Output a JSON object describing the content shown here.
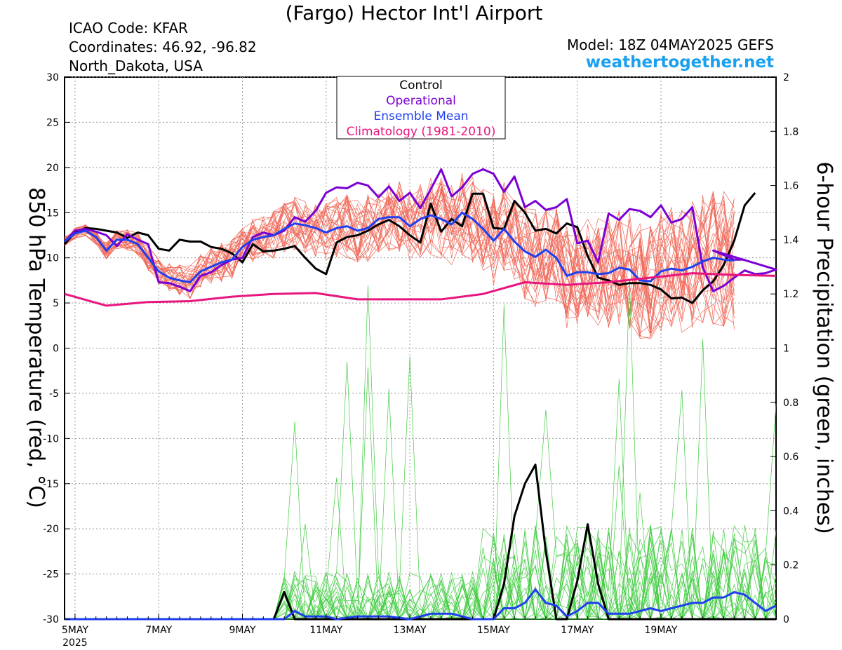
{
  "header": {
    "title": "(Fargo) Hector Int'l Airport",
    "icao": "ICAO Code: KFAR",
    "coordinates": "Coordinates: 46.92, -96.82",
    "region": "North_Dakota, USA",
    "model": "Model: 18Z 04MAY2025 GEFS",
    "site": "weathertogether.net"
  },
  "legend": {
    "items": [
      {
        "label": "Control",
        "color": "#000000"
      },
      {
        "label": "Operational",
        "color": "#7b00d4"
      },
      {
        "label": "Ensemble Mean",
        "color": "#1f3ff0"
      },
      {
        "label": "Climatology (1981-2010)",
        "color": "#e8157f"
      }
    ]
  },
  "colors": {
    "members_temp": "#f06a5a",
    "members_precip": "#44cc44",
    "control": "#000000",
    "operational": "#7b00d4",
    "mean": "#1f3ff0",
    "climatology": "#e8157f"
  },
  "chart_data": {
    "type": "line",
    "ylabel": "850 hPa Temperature (red, °C)",
    "y2label": "6-hour Precipitation (green, inches)",
    "x_unit": "days since 00Z 5MAY 2025",
    "xlim": [
      -0.25,
      16.75
    ],
    "ylim": [
      -30,
      30
    ],
    "y2lim": [
      0,
      2
    ],
    "x_ticks": [
      {
        "x": 0,
        "label": "5MAY",
        "sub": "2025"
      },
      {
        "x": 2,
        "label": "7MAY",
        "sub": ""
      },
      {
        "x": 4,
        "label": "9MAY",
        "sub": ""
      },
      {
        "x": 6,
        "label": "11MAY",
        "sub": ""
      },
      {
        "x": 8,
        "label": "13MAY",
        "sub": ""
      },
      {
        "x": 10,
        "label": "15MAY",
        "sub": ""
      },
      {
        "x": 12,
        "label": "17MAY",
        "sub": ""
      },
      {
        "x": 14,
        "label": "19MAY",
        "sub": ""
      }
    ],
    "y_ticks": [
      30,
      25,
      20,
      15,
      10,
      5,
      0,
      -5,
      -10,
      -15,
      -20,
      -25,
      -30
    ],
    "y2_ticks": [
      2,
      1.8,
      1.6,
      1.4,
      1.2,
      1,
      0.8,
      0.6,
      0.4,
      0.2,
      0
    ],
    "grid": true,
    "temperature_series": [
      {
        "name": "Control",
        "values": [
          [
            -0.25,
            11.5
          ],
          [
            0,
            12.8
          ],
          [
            0.25,
            13.3
          ],
          [
            0.5,
            13.2
          ],
          [
            0.75,
            13.0
          ],
          [
            1,
            12.8
          ],
          [
            1.25,
            12.2
          ],
          [
            1.5,
            12.8
          ],
          [
            1.75,
            12.5
          ],
          [
            2,
            11.0
          ],
          [
            2.25,
            10.8
          ],
          [
            2.5,
            12.0
          ],
          [
            2.75,
            11.8
          ],
          [
            3,
            11.8
          ],
          [
            3.25,
            11.2
          ],
          [
            3.5,
            11.0
          ],
          [
            3.75,
            10.5
          ],
          [
            4,
            9.5
          ],
          [
            4.25,
            11.5
          ],
          [
            4.5,
            10.7
          ],
          [
            4.75,
            10.8
          ],
          [
            5,
            11.0
          ],
          [
            5.25,
            11.3
          ],
          [
            5.5,
            10.0
          ],
          [
            5.75,
            8.8
          ],
          [
            6,
            8.2
          ],
          [
            6.25,
            11.7
          ],
          [
            6.5,
            12.3
          ],
          [
            6.75,
            12.5
          ],
          [
            7,
            13.0
          ],
          [
            7.25,
            13.7
          ],
          [
            7.5,
            14.2
          ],
          [
            7.75,
            13.5
          ],
          [
            8,
            12.5
          ],
          [
            8.25,
            11.7
          ],
          [
            8.5,
            16.0
          ],
          [
            8.75,
            12.9
          ],
          [
            9,
            14.3
          ],
          [
            9.25,
            13.5
          ],
          [
            9.5,
            17.1
          ],
          [
            9.75,
            17.1
          ],
          [
            10,
            13.3
          ],
          [
            10.25,
            13.2
          ],
          [
            10.5,
            16.3
          ],
          [
            10.75,
            15.0
          ],
          [
            11,
            13.0
          ],
          [
            11.25,
            13.2
          ],
          [
            11.5,
            12.7
          ],
          [
            11.75,
            13.8
          ],
          [
            12,
            13.4
          ],
          [
            12.25,
            10.2
          ],
          [
            12.5,
            7.8
          ],
          [
            12.75,
            7.5
          ],
          [
            13,
            7.0
          ],
          [
            13.25,
            7.2
          ],
          [
            13.5,
            7.2
          ],
          [
            13.75,
            7.0
          ],
          [
            14,
            6.5
          ],
          [
            14.25,
            5.5
          ],
          [
            14.5,
            5.6
          ],
          [
            14.75,
            5.0
          ],
          [
            15,
            6.4
          ],
          [
            15.25,
            7.4
          ],
          [
            15.5,
            9.2
          ],
          [
            15.75,
            11.9
          ],
          [
            16,
            15.8
          ],
          [
            16.25,
            17.2
          ]
        ]
      },
      {
        "name": "Operational",
        "values": [
          [
            -0.25,
            11.8
          ],
          [
            0,
            13.0
          ],
          [
            0.25,
            13.2
          ],
          [
            0.5,
            12.9
          ],
          [
            0.75,
            12.5
          ],
          [
            1,
            11.3
          ],
          [
            1.25,
            12.6
          ],
          [
            1.5,
            12.0
          ],
          [
            1.75,
            11.5
          ],
          [
            2,
            7.3
          ],
          [
            2.25,
            7.2
          ],
          [
            2.5,
            6.8
          ],
          [
            2.75,
            6.3
          ],
          [
            3,
            8.0
          ],
          [
            3.25,
            8.4
          ],
          [
            3.5,
            9.2
          ],
          [
            3.75,
            9.8
          ],
          [
            4,
            10.0
          ],
          [
            4.25,
            12.3
          ],
          [
            4.5,
            12.8
          ],
          [
            4.75,
            12.5
          ],
          [
            5,
            13.0
          ],
          [
            5.25,
            14.5
          ],
          [
            5.5,
            14.0
          ],
          [
            5.75,
            15.2
          ],
          [
            6,
            17.2
          ],
          [
            6.25,
            17.8
          ],
          [
            6.5,
            17.7
          ],
          [
            6.75,
            18.3
          ],
          [
            7,
            18.0
          ],
          [
            7.25,
            16.7
          ],
          [
            7.5,
            17.9
          ],
          [
            7.75,
            16.3
          ],
          [
            8,
            17.2
          ],
          [
            8.25,
            15.5
          ],
          [
            8.5,
            17.6
          ],
          [
            8.75,
            19.8
          ],
          [
            9,
            16.8
          ],
          [
            9.25,
            17.8
          ],
          [
            9.5,
            19.3
          ],
          [
            9.75,
            19.8
          ],
          [
            10,
            19.3
          ],
          [
            10.25,
            17.3
          ],
          [
            10.5,
            19.0
          ],
          [
            10.75,
            15.6
          ],
          [
            11,
            16.3
          ],
          [
            11.25,
            15.3
          ],
          [
            11.5,
            15.6
          ],
          [
            11.75,
            16.5
          ],
          [
            12,
            11.6
          ],
          [
            12.25,
            11.9
          ],
          [
            12.5,
            9.5
          ],
          [
            12.75,
            14.9
          ],
          [
            13,
            14.2
          ],
          [
            13.25,
            15.4
          ],
          [
            13.5,
            15.2
          ],
          [
            13.75,
            14.5
          ],
          [
            14,
            15.8
          ],
          [
            14.25,
            13.9
          ],
          [
            14.5,
            14.3
          ],
          [
            14.75,
            15.6
          ],
          [
            15,
            8.9
          ],
          [
            15.25,
            6.3
          ],
          [
            15.5,
            6.9
          ],
          [
            15.75,
            7.8
          ],
          [
            16,
            8.6
          ],
          [
            16.25,
            8.2
          ],
          [
            16.5,
            8.3
          ],
          [
            16.75,
            8.7
          ],
          [
            15.0,
            9.0
          ],
          [
            15.25,
            10.8
          ],
          [
            15.5,
            10.3
          ],
          [
            15.75,
            9.8
          ],
          [
            16,
            9.8
          ]
        ]
      },
      {
        "name": "Ensemble Mean",
        "values": [
          [
            -0.25,
            11.8
          ],
          [
            0,
            12.7
          ],
          [
            0.25,
            13.0
          ],
          [
            0.5,
            12.3
          ],
          [
            0.75,
            10.8
          ],
          [
            1,
            12.0
          ],
          [
            1.25,
            12.0
          ],
          [
            1.5,
            11.5
          ],
          [
            1.75,
            10.0
          ],
          [
            2,
            8.5
          ],
          [
            2.25,
            7.8
          ],
          [
            2.5,
            7.5
          ],
          [
            2.75,
            7.3
          ],
          [
            3,
            8.5
          ],
          [
            3.25,
            9.0
          ],
          [
            3.5,
            9.5
          ],
          [
            3.75,
            9.8
          ],
          [
            4,
            11.2
          ],
          [
            4.25,
            12.0
          ],
          [
            4.5,
            12.3
          ],
          [
            4.75,
            12.5
          ],
          [
            5,
            13.2
          ],
          [
            5.25,
            13.8
          ],
          [
            5.5,
            13.6
          ],
          [
            5.75,
            13.3
          ],
          [
            6,
            12.8
          ],
          [
            6.25,
            13.3
          ],
          [
            6.5,
            13.5
          ],
          [
            6.75,
            13.0
          ],
          [
            7,
            13.3
          ],
          [
            7.25,
            14.3
          ],
          [
            7.5,
            14.5
          ],
          [
            7.75,
            14.5
          ],
          [
            8,
            13.5
          ],
          [
            8.25,
            14.3
          ],
          [
            8.5,
            14.7
          ],
          [
            8.75,
            14.3
          ],
          [
            9,
            13.7
          ],
          [
            9.25,
            15.0
          ],
          [
            9.5,
            14.3
          ],
          [
            9.75,
            13.2
          ],
          [
            10,
            11.9
          ],
          [
            10.25,
            13.2
          ],
          [
            10.5,
            11.8
          ],
          [
            10.75,
            10.7
          ],
          [
            11,
            10.1
          ],
          [
            11.25,
            10.9
          ],
          [
            11.5,
            10.0
          ],
          [
            11.75,
            8.0
          ],
          [
            12,
            8.4
          ],
          [
            12.25,
            8.4
          ],
          [
            12.5,
            8.2
          ],
          [
            12.75,
            8.3
          ],
          [
            13,
            8.9
          ],
          [
            13.25,
            8.7
          ],
          [
            13.5,
            7.5
          ],
          [
            13.75,
            7.4
          ],
          [
            14,
            8.5
          ],
          [
            14.25,
            8.8
          ],
          [
            14.5,
            8.6
          ],
          [
            14.75,
            9.0
          ],
          [
            15,
            9.6
          ],
          [
            15.25,
            10.0
          ],
          [
            15.5,
            9.8
          ],
          [
            15.75,
            9.7
          ]
        ]
      },
      {
        "name": "Climatology (1981-2010)",
        "values": [
          [
            -0.25,
            6.0
          ],
          [
            0.75,
            4.7
          ],
          [
            1.75,
            5.1
          ],
          [
            2.75,
            5.2
          ],
          [
            3.75,
            5.7
          ],
          [
            4.75,
            6.0
          ],
          [
            5.75,
            6.1
          ],
          [
            6.75,
            5.4
          ],
          [
            7.75,
            5.4
          ],
          [
            8.75,
            5.4
          ],
          [
            9.75,
            6.0
          ],
          [
            10.75,
            7.3
          ],
          [
            11.75,
            7.0
          ],
          [
            12.75,
            7.3
          ],
          [
            13.75,
            7.8
          ],
          [
            14.75,
            8.3
          ],
          [
            15.75,
            8.1
          ],
          [
            16.75,
            8.0
          ]
        ]
      }
    ],
    "precipitation_series": [
      {
        "name": "Control",
        "values": [
          [
            -0.25,
            0
          ],
          [
            3.75,
            0
          ],
          [
            4.75,
            0
          ],
          [
            5.0,
            0.1
          ],
          [
            5.25,
            0
          ],
          [
            6.25,
            0
          ],
          [
            7.25,
            0
          ],
          [
            8.25,
            0
          ],
          [
            9.25,
            0
          ],
          [
            10.0,
            0
          ],
          [
            10.25,
            0.13
          ],
          [
            10.5,
            0.38
          ],
          [
            10.75,
            0.5
          ],
          [
            11.0,
            0.57
          ],
          [
            11.25,
            0.25
          ],
          [
            11.5,
            0
          ],
          [
            11.75,
            0
          ],
          [
            12.0,
            0.14
          ],
          [
            12.25,
            0.35
          ],
          [
            12.5,
            0.13
          ],
          [
            12.75,
            0
          ],
          [
            13.0,
            0
          ],
          [
            13.25,
            0
          ],
          [
            14.25,
            0
          ],
          [
            16.75,
            0
          ]
        ]
      },
      {
        "name": "Ensemble Mean",
        "values": [
          [
            -0.25,
            0
          ],
          [
            2.0,
            0
          ],
          [
            3.0,
            0
          ],
          [
            4.0,
            0
          ],
          [
            5.0,
            0
          ],
          [
            5.25,
            0.03
          ],
          [
            5.5,
            0.01
          ],
          [
            6.0,
            0.01
          ],
          [
            6.25,
            0
          ],
          [
            6.75,
            0.01
          ],
          [
            7.5,
            0.01
          ],
          [
            8.0,
            0
          ],
          [
            8.5,
            0.02
          ],
          [
            9.0,
            0.02
          ],
          [
            9.5,
            0
          ],
          [
            10.0,
            0
          ],
          [
            10.25,
            0.04
          ],
          [
            10.5,
            0.04
          ],
          [
            10.75,
            0.06
          ],
          [
            11.0,
            0.11
          ],
          [
            11.25,
            0.06
          ],
          [
            11.5,
            0.05
          ],
          [
            11.75,
            0.01
          ],
          [
            12.0,
            0.03
          ],
          [
            12.25,
            0.06
          ],
          [
            12.5,
            0.06
          ],
          [
            12.75,
            0.02
          ],
          [
            13.0,
            0.02
          ],
          [
            13.25,
            0.02
          ],
          [
            13.5,
            0.03
          ],
          [
            13.75,
            0.04
          ],
          [
            14.0,
            0.03
          ],
          [
            14.25,
            0.04
          ],
          [
            14.5,
            0.05
          ],
          [
            14.75,
            0.06
          ],
          [
            15.0,
            0.06
          ],
          [
            15.25,
            0.08
          ],
          [
            15.5,
            0.08
          ],
          [
            15.75,
            0.1
          ],
          [
            16.0,
            0.09
          ],
          [
            16.25,
            0.06
          ],
          [
            16.5,
            0.03
          ],
          [
            16.75,
            0.05
          ]
        ]
      }
    ]
  }
}
